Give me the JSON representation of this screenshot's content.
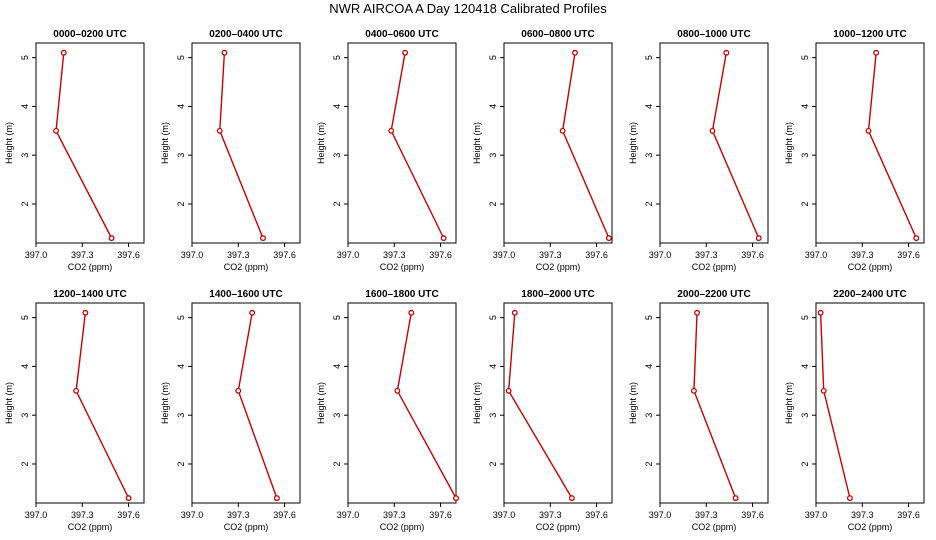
{
  "title": "NWR AIRCOA A  Day 120418  Calibrated Profiles",
  "colors": {
    "series": "#cc0000",
    "axis": "#000000",
    "background": "#ffffff"
  },
  "chart_data": [
    {
      "type": "line",
      "title": "0000–0200 UTC",
      "xlabel": "CO2 (ppm)",
      "ylabel": "Height (m)",
      "xlim": [
        397.0,
        397.7
      ],
      "ylim": [
        1.2,
        5.3
      ],
      "xticks": [
        397.0,
        397.3,
        397.6
      ],
      "xtick_labels": [
        "397.0",
        "397.3",
        "397.6"
      ],
      "yticks": [
        2,
        3,
        4,
        5
      ],
      "ytick_labels": [
        "2",
        "3",
        "4",
        "5"
      ],
      "grid": false,
      "series": [
        {
          "x": [
            397.49,
            397.13,
            397.18
          ],
          "y": [
            1.3,
            3.5,
            5.1
          ]
        }
      ]
    },
    {
      "type": "line",
      "title": "0200–0400 UTC",
      "xlabel": "CO2 (ppm)",
      "ylabel": "Height (m)",
      "xlim": [
        397.0,
        397.7
      ],
      "ylim": [
        1.2,
        5.3
      ],
      "xticks": [
        397.0,
        397.3,
        397.6
      ],
      "xtick_labels": [
        "397.0",
        "397.3",
        "397.6"
      ],
      "yticks": [
        2,
        3,
        4,
        5
      ],
      "ytick_labels": [
        "2",
        "3",
        "4",
        "5"
      ],
      "grid": false,
      "series": [
        {
          "x": [
            397.46,
            397.18,
            397.21
          ],
          "y": [
            1.3,
            3.5,
            5.1
          ]
        }
      ]
    },
    {
      "type": "line",
      "title": "0400–0600 UTC",
      "xlabel": "CO2 (ppm)",
      "ylabel": "Height (m)",
      "xlim": [
        397.0,
        397.7
      ],
      "ylim": [
        1.2,
        5.3
      ],
      "xticks": [
        397.0,
        397.3,
        397.6
      ],
      "xtick_labels": [
        "397.0",
        "397.3",
        "397.6"
      ],
      "yticks": [
        2,
        3,
        4,
        5
      ],
      "ytick_labels": [
        "2",
        "3",
        "4",
        "5"
      ],
      "grid": false,
      "series": [
        {
          "x": [
            397.62,
            397.28,
            397.37
          ],
          "y": [
            1.3,
            3.5,
            5.1
          ]
        }
      ]
    },
    {
      "type": "line",
      "title": "0600–0800 UTC",
      "xlabel": "CO2 (ppm)",
      "ylabel": "Height (m)",
      "xlim": [
        397.0,
        397.7
      ],
      "ylim": [
        1.2,
        5.3
      ],
      "xticks": [
        397.0,
        397.3,
        397.6
      ],
      "xtick_labels": [
        "397.0",
        "397.3",
        "397.6"
      ],
      "yticks": [
        2,
        3,
        4,
        5
      ],
      "ytick_labels": [
        "2",
        "3",
        "4",
        "5"
      ],
      "grid": false,
      "series": [
        {
          "x": [
            397.68,
            397.38,
            397.46
          ],
          "y": [
            1.3,
            3.5,
            5.1
          ]
        }
      ]
    },
    {
      "type": "line",
      "title": "0800–1000 UTC",
      "xlabel": "CO2 (ppm)",
      "ylabel": "Height (m)",
      "xlim": [
        397.0,
        397.7
      ],
      "ylim": [
        1.2,
        5.3
      ],
      "xticks": [
        397.0,
        397.3,
        397.6
      ],
      "xtick_labels": [
        "397.0",
        "397.3",
        "397.6"
      ],
      "yticks": [
        2,
        3,
        4,
        5
      ],
      "ytick_labels": [
        "2",
        "3",
        "4",
        "5"
      ],
      "grid": false,
      "series": [
        {
          "x": [
            397.64,
            397.34,
            397.43
          ],
          "y": [
            1.3,
            3.5,
            5.1
          ]
        }
      ]
    },
    {
      "type": "line",
      "title": "1000–1200 UTC",
      "xlabel": "CO2 (ppm)",
      "ylabel": "Height (m)",
      "xlim": [
        397.0,
        397.7
      ],
      "ylim": [
        1.2,
        5.3
      ],
      "xticks": [
        397.0,
        397.3,
        397.6
      ],
      "xtick_labels": [
        "397.0",
        "397.3",
        "397.6"
      ],
      "yticks": [
        2,
        3,
        4,
        5
      ],
      "ytick_labels": [
        "2",
        "3",
        "4",
        "5"
      ],
      "grid": false,
      "series": [
        {
          "x": [
            397.65,
            397.34,
            397.39
          ],
          "y": [
            1.3,
            3.5,
            5.1
          ]
        }
      ]
    },
    {
      "type": "line",
      "title": "1200–1400 UTC",
      "xlabel": "CO2 (ppm)",
      "ylabel": "Height (m)",
      "xlim": [
        397.0,
        397.7
      ],
      "ylim": [
        1.2,
        5.3
      ],
      "xticks": [
        397.0,
        397.3,
        397.6
      ],
      "xtick_labels": [
        "397.0",
        "397.3",
        "397.6"
      ],
      "yticks": [
        2,
        3,
        4,
        5
      ],
      "ytick_labels": [
        "2",
        "3",
        "4",
        "5"
      ],
      "grid": false,
      "series": [
        {
          "x": [
            397.6,
            397.26,
            397.32
          ],
          "y": [
            1.3,
            3.5,
            5.1
          ]
        }
      ]
    },
    {
      "type": "line",
      "title": "1400–1600 UTC",
      "xlabel": "CO2 (ppm)",
      "ylabel": "Height (m)",
      "xlim": [
        397.0,
        397.7
      ],
      "ylim": [
        1.2,
        5.3
      ],
      "xticks": [
        397.0,
        397.3,
        397.6
      ],
      "xtick_labels": [
        "397.0",
        "397.3",
        "397.6"
      ],
      "yticks": [
        2,
        3,
        4,
        5
      ],
      "ytick_labels": [
        "2",
        "3",
        "4",
        "5"
      ],
      "grid": false,
      "series": [
        {
          "x": [
            397.55,
            397.3,
            397.39
          ],
          "y": [
            1.3,
            3.5,
            5.1
          ]
        }
      ]
    },
    {
      "type": "line",
      "title": "1600–1800 UTC",
      "xlabel": "CO2 (ppm)",
      "ylabel": "Height (m)",
      "xlim": [
        397.0,
        397.7
      ],
      "ylim": [
        1.2,
        5.3
      ],
      "xticks": [
        397.0,
        397.3,
        397.6
      ],
      "xtick_labels": [
        "397.0",
        "397.3",
        "397.6"
      ],
      "yticks": [
        2,
        3,
        4,
        5
      ],
      "ytick_labels": [
        "2",
        "3",
        "4",
        "5"
      ],
      "grid": false,
      "series": [
        {
          "x": [
            397.7,
            397.32,
            397.41
          ],
          "y": [
            1.3,
            3.5,
            5.1
          ]
        }
      ]
    },
    {
      "type": "line",
      "title": "1800–2000 UTC",
      "xlabel": "CO2 (ppm)",
      "ylabel": "Height (m)",
      "xlim": [
        397.0,
        397.7
      ],
      "ylim": [
        1.2,
        5.3
      ],
      "xticks": [
        397.0,
        397.3,
        397.6
      ],
      "xtick_labels": [
        "397.0",
        "397.3",
        "397.6"
      ],
      "yticks": [
        2,
        3,
        4,
        5
      ],
      "ytick_labels": [
        "2",
        "3",
        "4",
        "5"
      ],
      "grid": false,
      "series": [
        {
          "x": [
            397.44,
            397.03,
            397.07
          ],
          "y": [
            1.3,
            3.5,
            5.1
          ]
        }
      ]
    },
    {
      "type": "line",
      "title": "2000–2200 UTC",
      "xlabel": "CO2 (ppm)",
      "ylabel": "Height (m)",
      "xlim": [
        397.0,
        397.7
      ],
      "ylim": [
        1.2,
        5.3
      ],
      "xticks": [
        397.0,
        397.3,
        397.6
      ],
      "xtick_labels": [
        "397.0",
        "397.3",
        "397.6"
      ],
      "yticks": [
        2,
        3,
        4,
        5
      ],
      "ytick_labels": [
        "2",
        "3",
        "4",
        "5"
      ],
      "grid": false,
      "series": [
        {
          "x": [
            397.49,
            397.22,
            397.24
          ],
          "y": [
            1.3,
            3.5,
            5.1
          ]
        }
      ]
    },
    {
      "type": "line",
      "title": "2200–2400 UTC",
      "xlabel": "CO2 (ppm)",
      "ylabel": "Height (m)",
      "xlim": [
        397.0,
        397.7
      ],
      "ylim": [
        1.2,
        5.3
      ],
      "xticks": [
        397.0,
        397.3,
        397.6
      ],
      "xtick_labels": [
        "397.0",
        "397.3",
        "397.6"
      ],
      "yticks": [
        2,
        3,
        4,
        5
      ],
      "ytick_labels": [
        "2",
        "3",
        "4",
        "5"
      ],
      "grid": false,
      "series": [
        {
          "x": [
            397.22,
            397.05,
            397.03
          ],
          "y": [
            1.3,
            3.5,
            5.1
          ]
        }
      ]
    }
  ]
}
